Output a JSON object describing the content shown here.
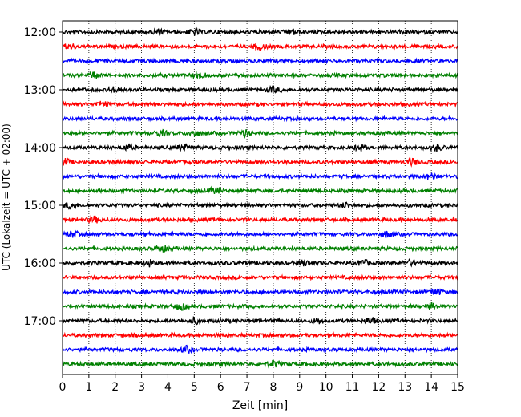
{
  "chart_data": {
    "type": "line",
    "xlabel": "Zeit  [min]",
    "ylabel": "UTC (Lokalzeit = UTC + 02:00)",
    "xlim": [
      0,
      15
    ],
    "x_ticks": [
      0,
      1,
      2,
      3,
      4,
      5,
      6,
      7,
      8,
      9,
      10,
      11,
      12,
      13,
      14,
      15
    ],
    "x_tick_labels": [
      "0",
      "1",
      "2",
      "3",
      "4",
      "5",
      "6",
      "7",
      "8",
      "9",
      "10",
      "11",
      "12",
      "13",
      "14",
      "15"
    ],
    "y_tick_labels": [
      "12:00",
      "13:00",
      "14:00",
      "15:00",
      "16:00",
      "17:00"
    ],
    "grid": "vertical dotted at each minute",
    "trace_colors": [
      "#000000",
      "#ff0000",
      "#0000ff",
      "#008000"
    ],
    "traces": [
      {
        "start_utc": "12:00",
        "color": "#000000",
        "events_min": [
          3.6,
          5.0,
          8.7
        ]
      },
      {
        "start_utc": "12:15",
        "color": "#ff0000",
        "events_min": [
          0.3,
          7.5
        ]
      },
      {
        "start_utc": "12:30",
        "color": "#0000ff",
        "events_min": []
      },
      {
        "start_utc": "12:45",
        "color": "#008000",
        "events_min": [
          1.2,
          5.2
        ]
      },
      {
        "start_utc": "13:00",
        "color": "#000000",
        "events_min": [
          2.0,
          8.0
        ]
      },
      {
        "start_utc": "13:15",
        "color": "#ff0000",
        "events_min": [
          1.5
        ]
      },
      {
        "start_utc": "13:30",
        "color": "#0000ff",
        "events_min": []
      },
      {
        "start_utc": "13:45",
        "color": "#008000",
        "events_min": [
          3.7,
          5.0,
          6.9
        ]
      },
      {
        "start_utc": "14:00",
        "color": "#000000",
        "events_min": [
          2.5,
          4.6,
          11.3,
          14.2
        ]
      },
      {
        "start_utc": "14:15",
        "color": "#ff0000",
        "events_min": [
          0.1,
          13.3
        ]
      },
      {
        "start_utc": "14:30",
        "color": "#0000ff",
        "events_min": [
          14.0
        ]
      },
      {
        "start_utc": "14:45",
        "color": "#008000",
        "events_min": [
          5.8
        ]
      },
      {
        "start_utc": "15:00",
        "color": "#000000",
        "events_min": [
          0.3,
          10.8
        ]
      },
      {
        "start_utc": "15:15",
        "color": "#ff0000",
        "events_min": [
          1.2
        ]
      },
      {
        "start_utc": "15:30",
        "color": "#0000ff",
        "events_min": [
          0.4,
          12.3
        ]
      },
      {
        "start_utc": "15:45",
        "color": "#008000",
        "events_min": [
          3.8
        ]
      },
      {
        "start_utc": "16:00",
        "color": "#000000",
        "events_min": [
          3.3,
          9.2,
          11.4,
          13.2
        ]
      },
      {
        "start_utc": "16:15",
        "color": "#ff0000",
        "events_min": []
      },
      {
        "start_utc": "16:30",
        "color": "#0000ff",
        "events_min": [
          14.2
        ]
      },
      {
        "start_utc": "16:45",
        "color": "#008000",
        "events_min": [
          4.5,
          14.0
        ]
      },
      {
        "start_utc": "17:00",
        "color": "#000000",
        "events_min": [
          5.0,
          9.7,
          11.7
        ]
      },
      {
        "start_utc": "17:15",
        "color": "#ff0000",
        "events_min": []
      },
      {
        "start_utc": "17:30",
        "color": "#0000ff",
        "events_min": [
          4.7
        ]
      },
      {
        "start_utc": "17:45",
        "color": "#008000",
        "events_min": [
          8.0
        ]
      }
    ]
  }
}
